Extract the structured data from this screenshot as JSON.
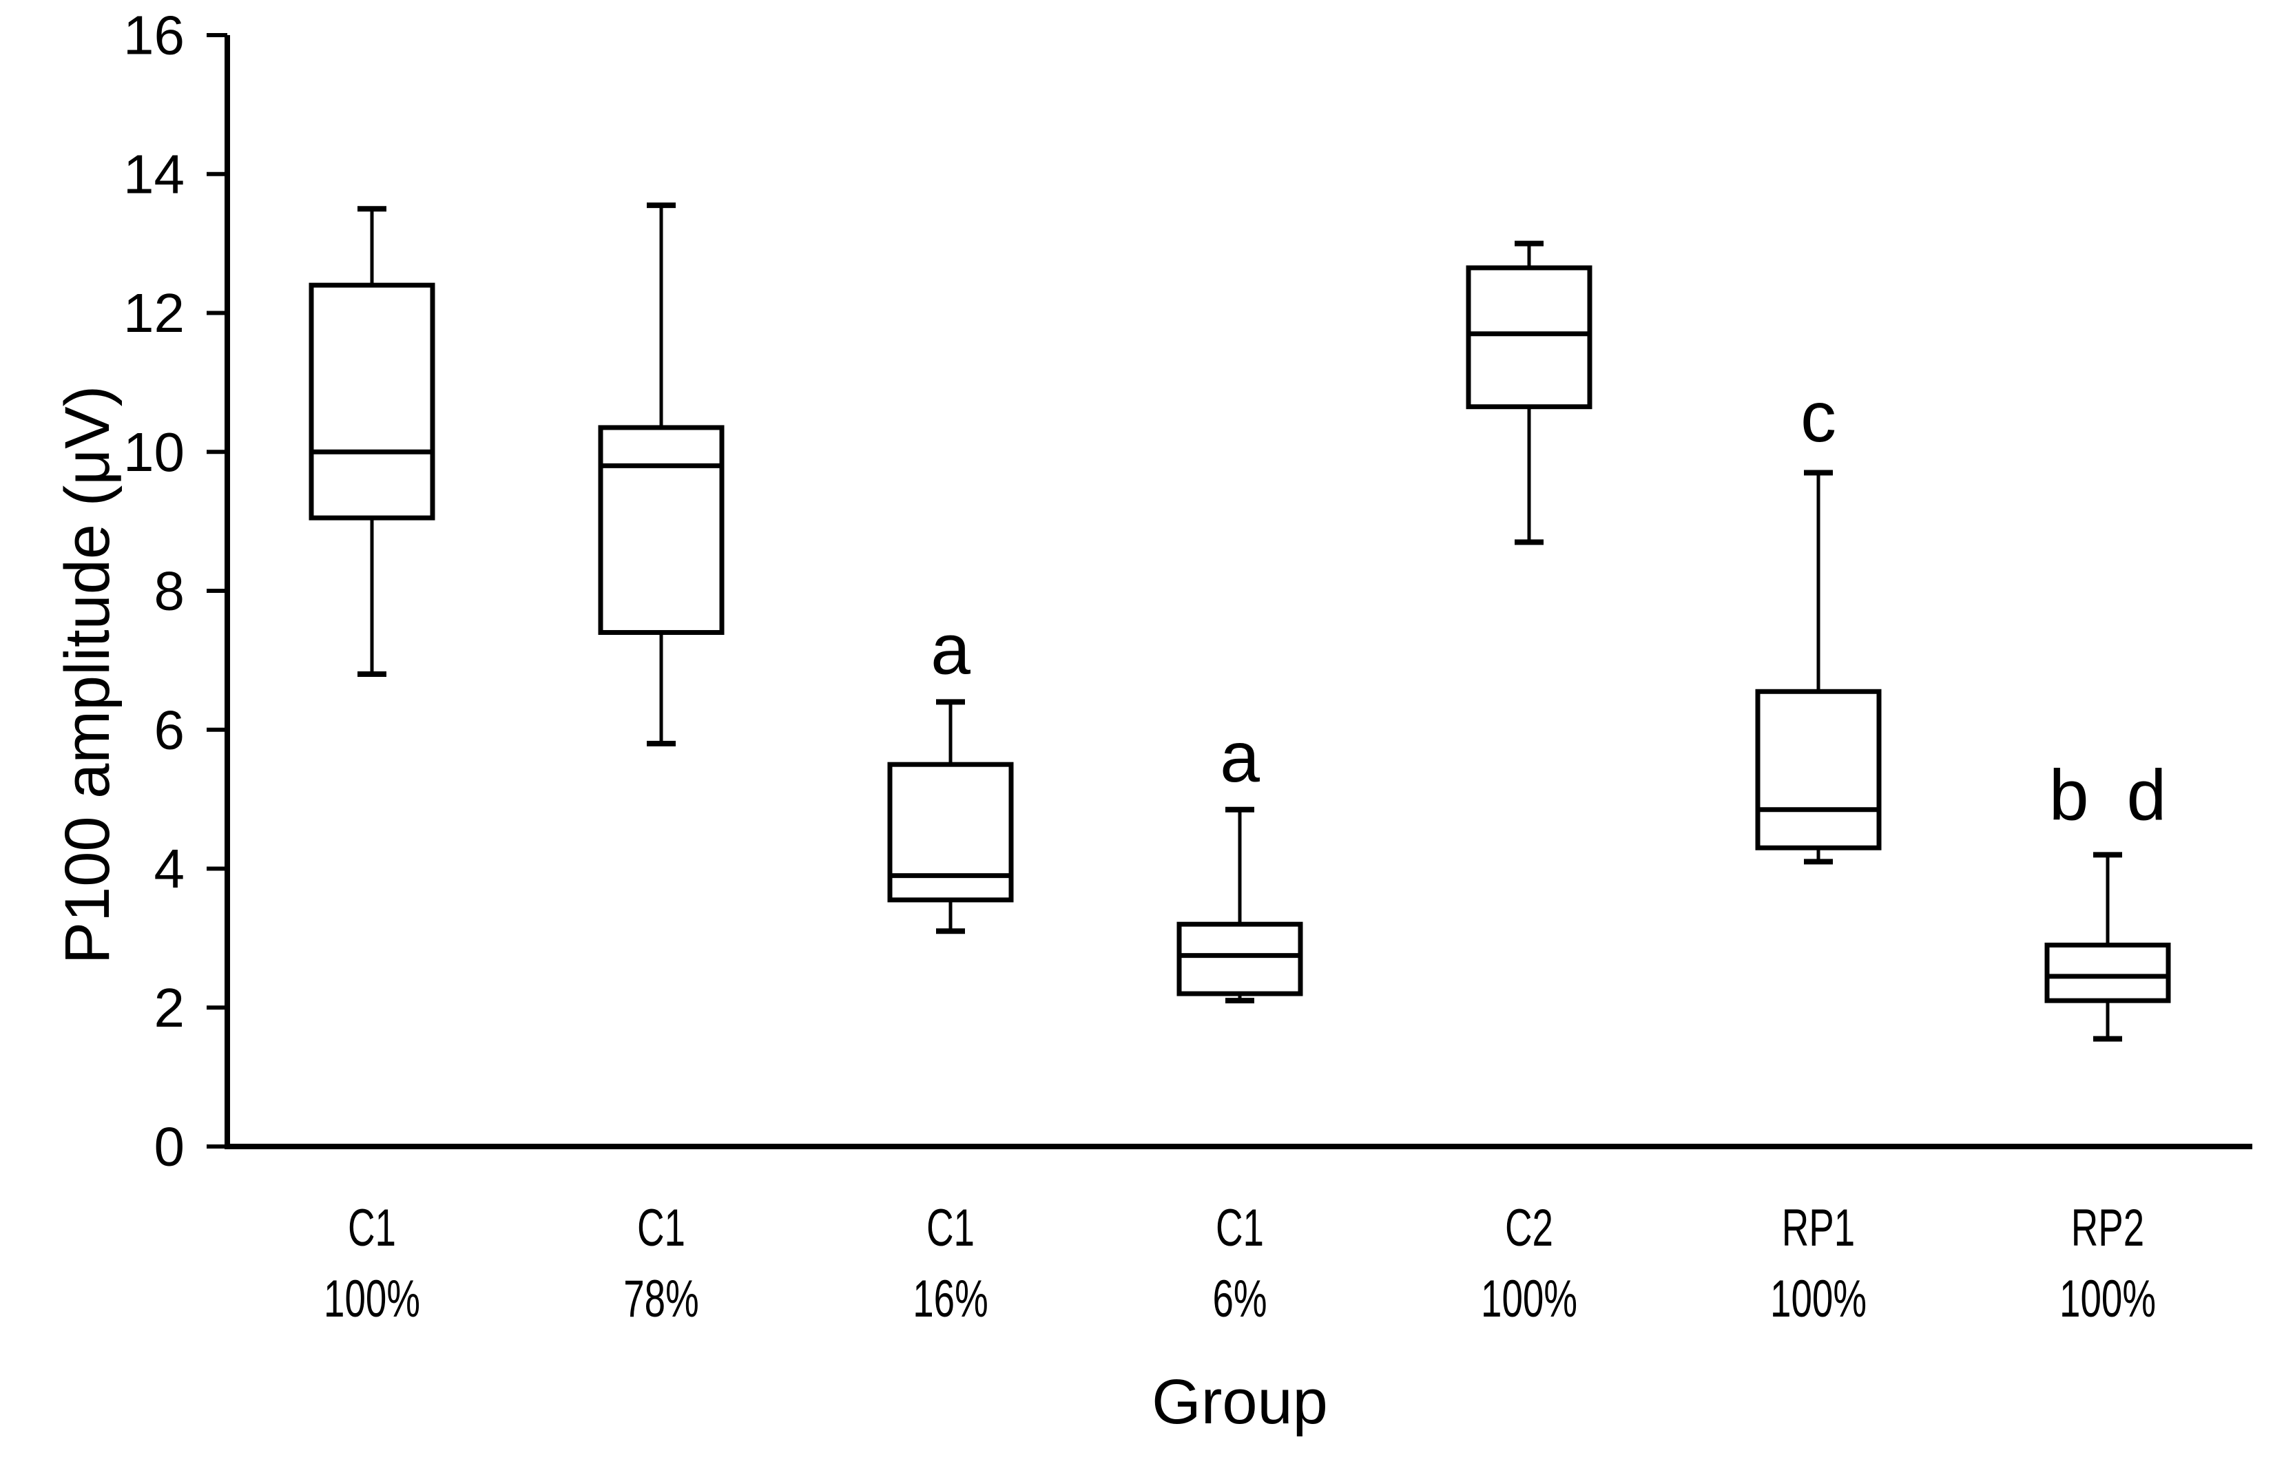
{
  "figure": {
    "background_color": "#ffffff",
    "ink_color": "#000000"
  },
  "chart_data": {
    "type": "boxplot",
    "title": "",
    "xlabel": "Group",
    "ylabel": "P100 amplitude (μV)",
    "ylim": [
      0,
      16
    ],
    "yticks": [
      0,
      2,
      4,
      6,
      8,
      10,
      12,
      14,
      16
    ],
    "grid": false,
    "legend": null,
    "categories": [
      {
        "group": "C1",
        "percent": "100%"
      },
      {
        "group": "C1",
        "percent": "78%"
      },
      {
        "group": "C1",
        "percent": "16%"
      },
      {
        "group": "C1",
        "percent": "6%"
      },
      {
        "group": "C2",
        "percent": "100%"
      },
      {
        "group": "RP1",
        "percent": "100%"
      },
      {
        "group": "RP2",
        "percent": "100%"
      }
    ],
    "series": [
      {
        "name": "C1 100%",
        "min": 6.8,
        "q1": 9.05,
        "median": 10.0,
        "q3": 12.4,
        "max": 13.5,
        "annotation": null,
        "annotation_y": null
      },
      {
        "name": "C1 78%",
        "min": 5.8,
        "q1": 7.4,
        "median": 9.8,
        "q3": 10.35,
        "max": 13.55,
        "annotation": null,
        "annotation_y": null
      },
      {
        "name": "C1 16%",
        "min": 3.1,
        "q1": 3.55,
        "median": 3.9,
        "q3": 5.5,
        "max": 6.4,
        "annotation": "a",
        "annotation_y": 7.15
      },
      {
        "name": "C1 6%",
        "min": 2.1,
        "q1": 2.2,
        "median": 2.75,
        "q3": 3.2,
        "max": 4.85,
        "annotation": "a",
        "annotation_y": 5.6
      },
      {
        "name": "C2 100%",
        "min": 8.7,
        "q1": 10.65,
        "median": 11.7,
        "q3": 12.65,
        "max": 13.0,
        "annotation": null,
        "annotation_y": null
      },
      {
        "name": "RP1 100%",
        "min": 4.1,
        "q1": 4.3,
        "median": 4.85,
        "q3": 6.55,
        "max": 9.7,
        "annotation": "c",
        "annotation_y": 10.5
      },
      {
        "name": "RP2 100%",
        "min": 1.55,
        "q1": 2.1,
        "median": 2.45,
        "q3": 2.9,
        "max": 4.2,
        "annotation": "b d",
        "annotation_y": 5.05
      }
    ]
  }
}
